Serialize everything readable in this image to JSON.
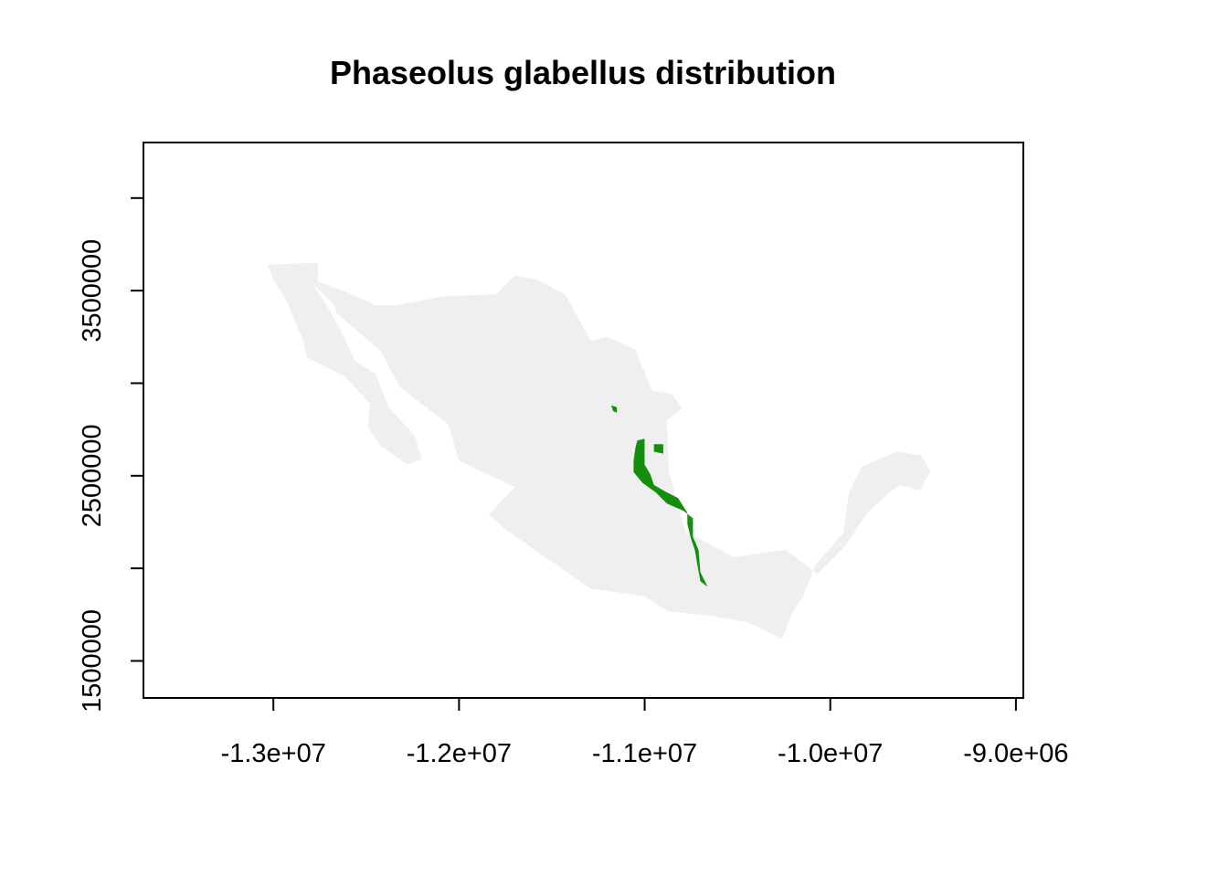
{
  "chart_data": {
    "type": "map",
    "title": "Phaseolus glabellus distribution",
    "xlabel": "",
    "ylabel": "",
    "xlim": [
      -13700000,
      -8960000
    ],
    "ylim": [
      1300000,
      4300000
    ],
    "x_ticks": [
      {
        "value": -13000000,
        "label": "-1.3e+07"
      },
      {
        "value": -12000000,
        "label": "-1.2e+07"
      },
      {
        "value": -11000000,
        "label": "-1.1e+07"
      },
      {
        "value": -10000000,
        "label": "-1.0e+07"
      },
      {
        "value": -9000000,
        "label": "-9.0e+06"
      }
    ],
    "y_ticks": [
      {
        "value": 1500000,
        "label": "1500000"
      },
      {
        "value": 2000000,
        "label": ""
      },
      {
        "value": 2500000,
        "label": "2500000"
      },
      {
        "value": 3000000,
        "label": ""
      },
      {
        "value": 3500000,
        "label": "3500000"
      },
      {
        "value": 4000000,
        "label": ""
      }
    ],
    "layers": [
      {
        "name": "Mexico",
        "color": "#efefef",
        "polygons": [
          [
            [
              -13030000,
              3640000
            ],
            [
              -12760000,
              3650000
            ],
            [
              -12760000,
              3550000
            ],
            [
              -12600000,
              3490000
            ],
            [
              -12450000,
              3420000
            ],
            [
              -12340000,
              3420000
            ],
            [
              -12080000,
              3470000
            ],
            [
              -11800000,
              3480000
            ],
            [
              -11700000,
              3580000
            ],
            [
              -11580000,
              3560000
            ],
            [
              -11430000,
              3480000
            ],
            [
              -11290000,
              3230000
            ],
            [
              -11200000,
              3250000
            ],
            [
              -11050000,
              3180000
            ],
            [
              -10960000,
              2960000
            ],
            [
              -10850000,
              2940000
            ],
            [
              -10800000,
              2860000
            ],
            [
              -10880000,
              2800000
            ],
            [
              -10870000,
              2520000
            ],
            [
              -10780000,
              2200000
            ],
            [
              -10520000,
              2060000
            ],
            [
              -10240000,
              2100000
            ],
            [
              -10070000,
              1970000
            ],
            [
              -9920000,
              2120000
            ],
            [
              -9800000,
              2300000
            ],
            [
              -9670000,
              2420000
            ],
            [
              -9620000,
              2450000
            ],
            [
              -9520000,
              2420000
            ],
            [
              -9460000,
              2520000
            ],
            [
              -9510000,
              2610000
            ],
            [
              -9640000,
              2630000
            ],
            [
              -9830000,
              2550000
            ],
            [
              -9900000,
              2410000
            ],
            [
              -9930000,
              2190000
            ],
            [
              -10080000,
              2020000
            ],
            [
              -10150000,
              1840000
            ],
            [
              -10200000,
              1770000
            ],
            [
              -10260000,
              1620000
            ],
            [
              -10450000,
              1710000
            ],
            [
              -10620000,
              1740000
            ],
            [
              -10880000,
              1770000
            ],
            [
              -11000000,
              1850000
            ],
            [
              -11290000,
              1890000
            ],
            [
              -11550000,
              2070000
            ],
            [
              -11750000,
              2210000
            ],
            [
              -11840000,
              2290000
            ],
            [
              -11700000,
              2440000
            ],
            [
              -12000000,
              2580000
            ],
            [
              -12060000,
              2780000
            ],
            [
              -12320000,
              2980000
            ],
            [
              -12420000,
              3170000
            ],
            [
              -12660000,
              3380000
            ],
            [
              -12670000,
              3420000
            ],
            [
              -12790000,
              3540000
            ],
            [
              -12720000,
              3430000
            ],
            [
              -12640000,
              3290000
            ],
            [
              -12560000,
              3120000
            ],
            [
              -12450000,
              3050000
            ],
            [
              -12380000,
              2870000
            ],
            [
              -12240000,
              2720000
            ],
            [
              -12200000,
              2590000
            ],
            [
              -12280000,
              2560000
            ],
            [
              -12420000,
              2660000
            ],
            [
              -12490000,
              2760000
            ],
            [
              -12480000,
              2890000
            ],
            [
              -12620000,
              3040000
            ],
            [
              -12820000,
              3140000
            ],
            [
              -12840000,
              3230000
            ],
            [
              -12930000,
              3450000
            ],
            [
              -13000000,
              3560000
            ]
          ]
        ]
      },
      {
        "name": "Phaseolus glabellus",
        "color": "#138f0d",
        "polygons": [
          [
            [
              -11040000,
              2690000
            ],
            [
              -11000000,
              2700000
            ],
            [
              -11000000,
              2560000
            ],
            [
              -10970000,
              2510000
            ],
            [
              -10950000,
              2450000
            ],
            [
              -10880000,
              2410000
            ],
            [
              -10820000,
              2380000
            ],
            [
              -10770000,
              2300000
            ],
            [
              -10770000,
              2240000
            ],
            [
              -10750000,
              2160000
            ],
            [
              -10730000,
              2100000
            ],
            [
              -10700000,
              1930000
            ],
            [
              -10660000,
              1900000
            ],
            [
              -10700000,
              1980000
            ],
            [
              -10710000,
              2100000
            ],
            [
              -10740000,
              2170000
            ],
            [
              -10740000,
              2270000
            ],
            [
              -10790000,
              2310000
            ],
            [
              -10880000,
              2350000
            ],
            [
              -10940000,
              2410000
            ],
            [
              -11010000,
              2460000
            ],
            [
              -11060000,
              2520000
            ],
            [
              -11060000,
              2580000
            ],
            [
              -11050000,
              2650000
            ]
          ],
          [
            [
              -10950000,
              2670000
            ],
            [
              -10900000,
              2670000
            ],
            [
              -10900000,
              2620000
            ],
            [
              -10950000,
              2630000
            ]
          ],
          [
            [
              -11180000,
              2880000
            ],
            [
              -11150000,
              2870000
            ],
            [
              -11150000,
              2840000
            ],
            [
              -11170000,
              2850000
            ]
          ]
        ]
      }
    ]
  }
}
